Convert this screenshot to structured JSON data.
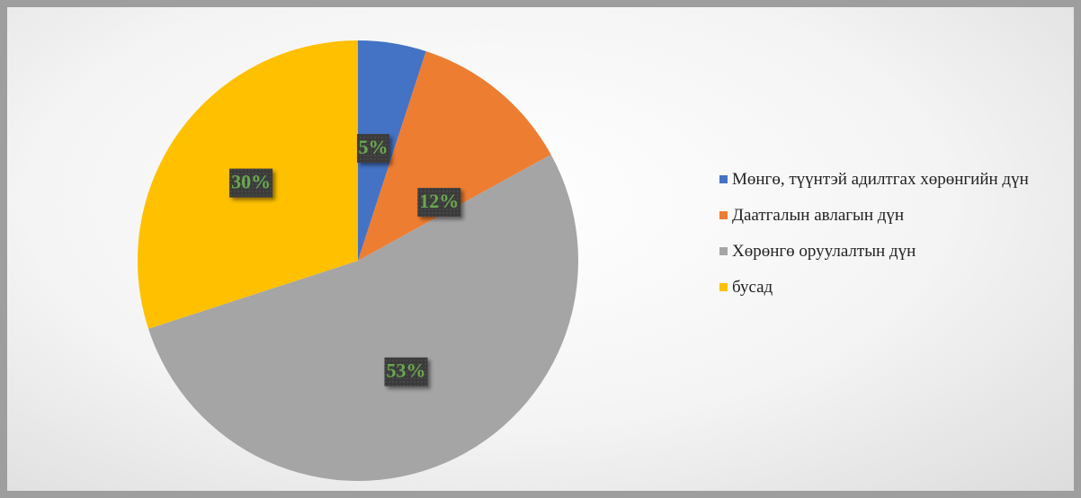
{
  "chart_data": {
    "type": "pie",
    "categories": [
      "Мөнгө, түүнтэй адилтгах хөрөнгийн дүн",
      "Даатгалын авлагын дүн",
      "Хөрөнгө оруулалтын дүн",
      "бусад"
    ],
    "values": [
      5,
      12,
      53,
      30
    ],
    "value_labels": [
      "5%",
      "12%",
      "53%",
      "30%"
    ],
    "colors": [
      "#4472c4",
      "#ed7d31",
      "#a5a5a5",
      "#ffc000"
    ],
    "legend": "right"
  }
}
